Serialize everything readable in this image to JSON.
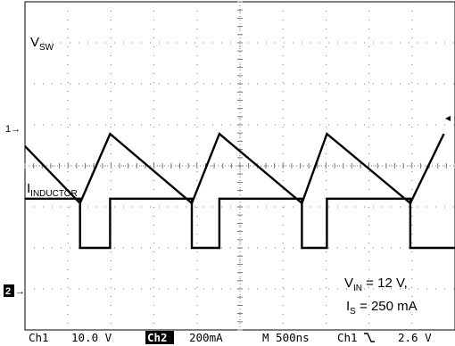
{
  "chart_data": {
    "type": "line",
    "time_units": "ns",
    "x_range": [
      0,
      5000
    ],
    "grid": true,
    "series": [
      {
        "name": "VSW",
        "label_main": "V",
        "label_sub": "SW",
        "ground_marker": "1",
        "units": "V",
        "y_range": [
          -20,
          60
        ],
        "x": [
          0,
          640,
          640,
          990,
          990,
          1940,
          1940,
          2260,
          2260,
          3220,
          3220,
          3510,
          3510,
          4480,
          4480,
          5000
        ],
        "y": [
          12,
          12,
          0,
          0,
          12,
          12,
          0,
          0,
          12,
          12,
          0,
          0,
          12,
          12,
          0,
          0
        ]
      },
      {
        "name": "IINDUCTOR",
        "label_main": "I",
        "label_sub": "INDUCTOR",
        "ground_marker": "2",
        "units": "mA",
        "y_range": [
          -400,
          1200
        ],
        "x": [
          0,
          640,
          990,
          1940,
          2260,
          3220,
          3510,
          4480,
          4870
        ],
        "y": [
          496,
          218,
          556,
          218,
          556,
          218,
          556,
          218,
          556
        ]
      }
    ],
    "annotation": {
      "line1_main": "V",
      "line1_sub": "IN",
      "line1_rest": " = 12 V,",
      "line2_main": "I",
      "line2_sub": "S",
      "line2_rest": " = 250 mA"
    },
    "status_bar": {
      "ch1": "Ch1",
      "ch1_scale": "10.0 V",
      "ch2": "Ch2",
      "ch2_scale": "200mA",
      "timebase": "M 500ns",
      "trigger_source": "Ch1",
      "trigger_slope": "falling",
      "trigger_level": "2.6 V"
    },
    "colors": {
      "trace": "#000000",
      "grid": "#777777",
      "background": "#ffffff"
    }
  }
}
